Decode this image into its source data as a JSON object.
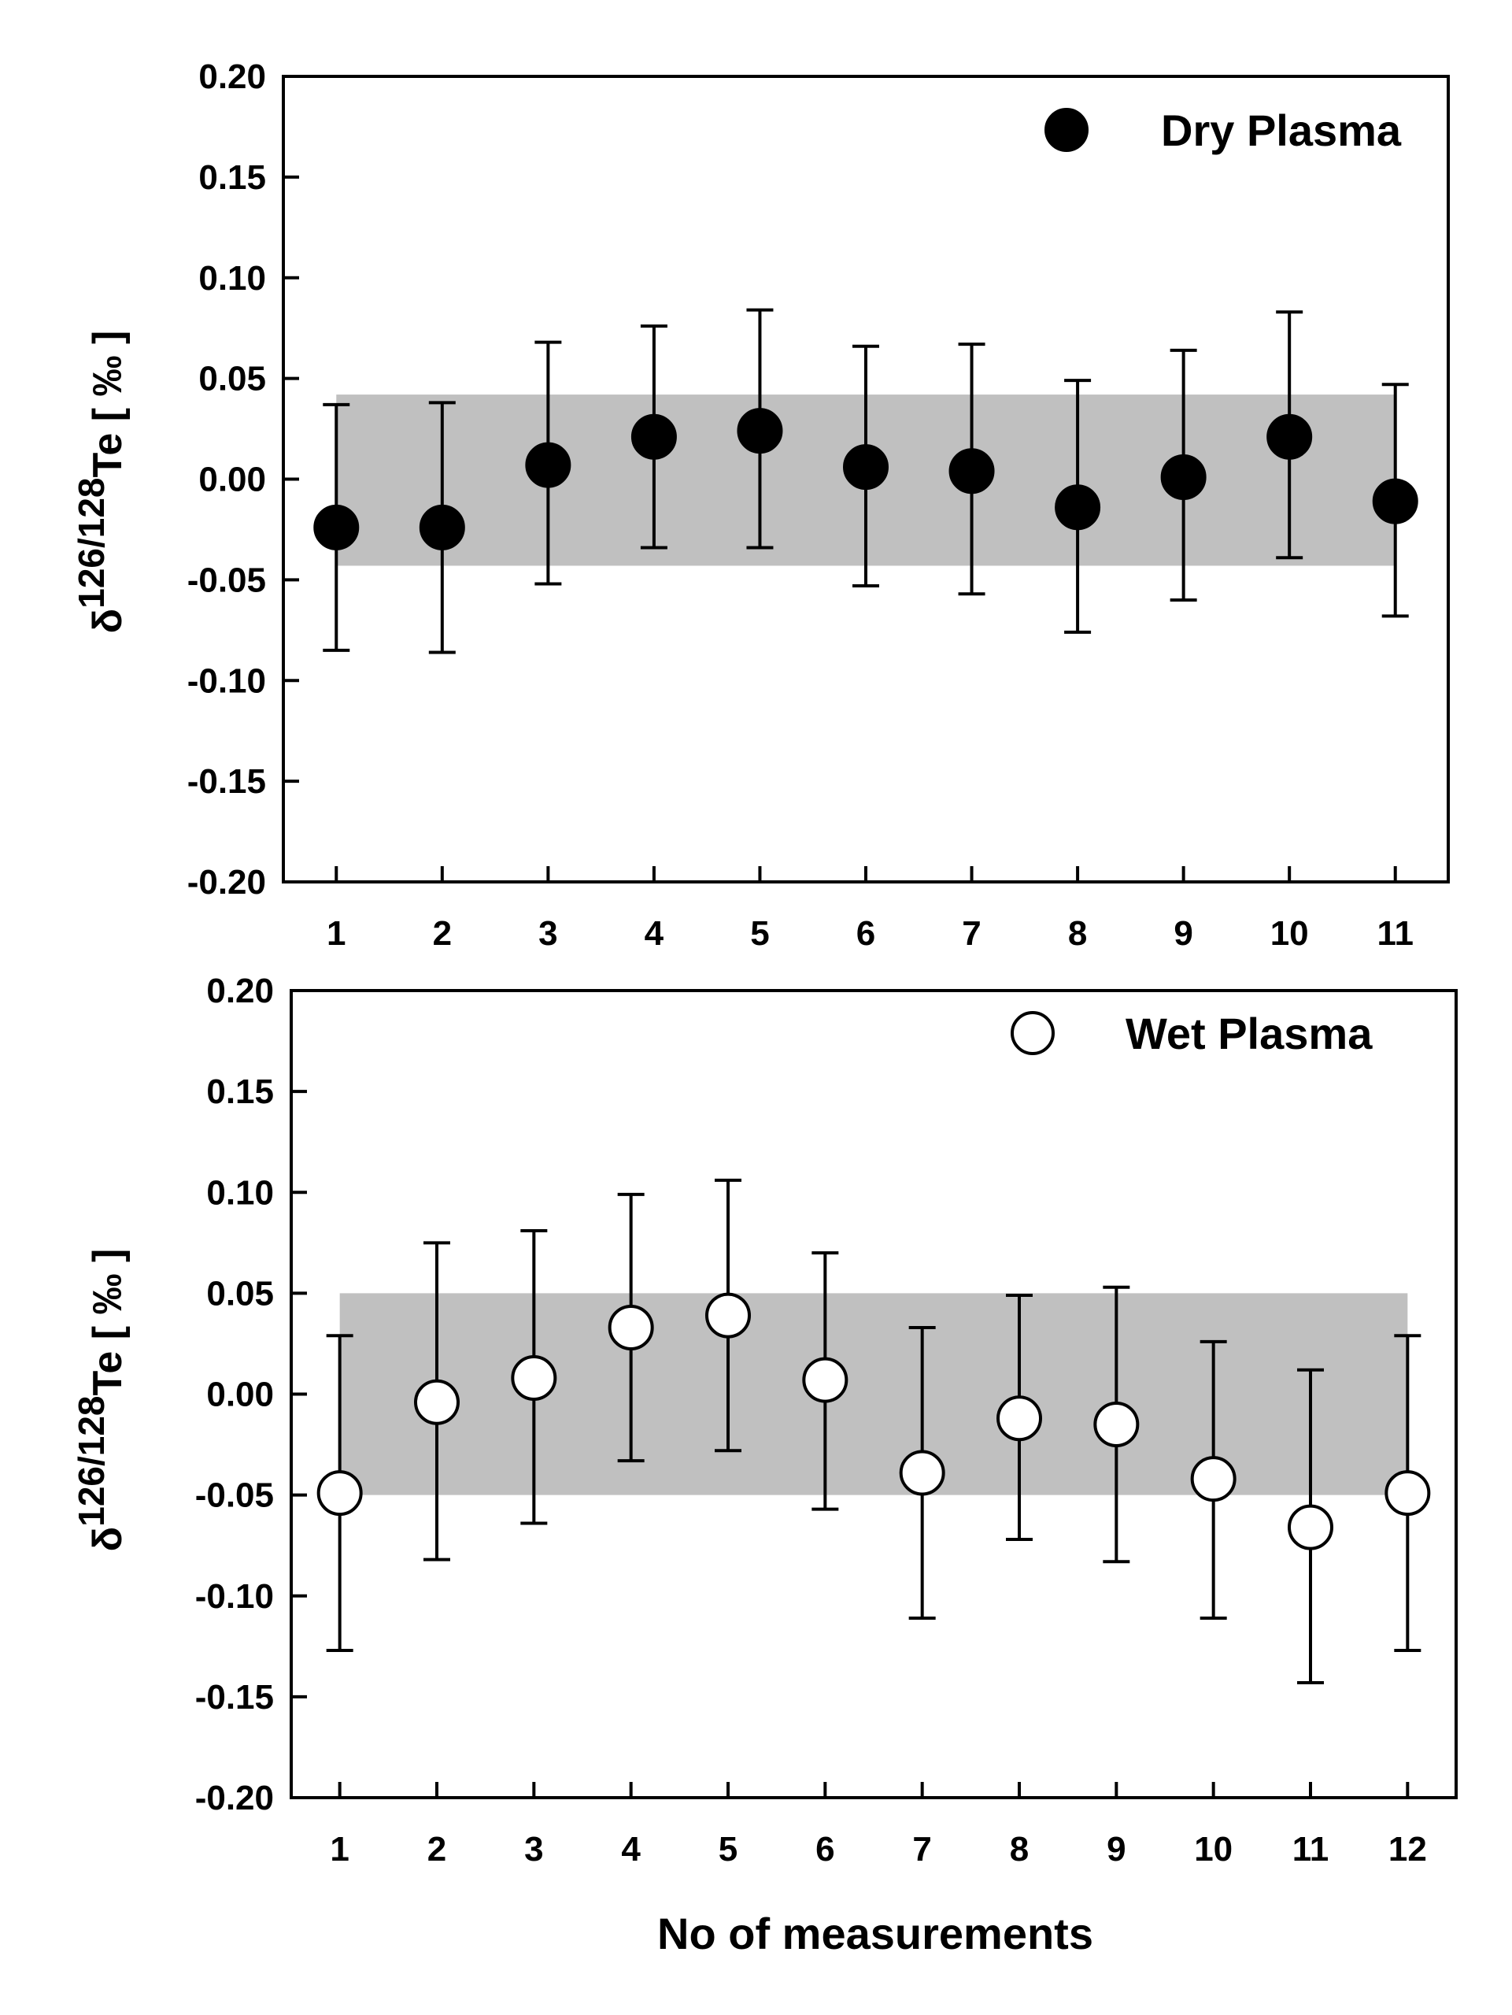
{
  "chart_data": [
    {
      "type": "scatter",
      "panel": "top",
      "series_name": "Dry Plasma",
      "marker": "filled-circle",
      "x": [
        1,
        2,
        3,
        4,
        5,
        6,
        7,
        8,
        9,
        10,
        11
      ],
      "y": [
        -0.024,
        -0.024,
        0.007,
        0.021,
        0.024,
        0.006,
        0.004,
        -0.014,
        0.001,
        0.021,
        -0.011
      ],
      "y_err_upper": [
        0.037,
        0.038,
        0.068,
        0.076,
        0.084,
        0.066,
        0.067,
        0.049,
        0.064,
        0.083,
        0.047
      ],
      "y_err_lower": [
        -0.085,
        -0.086,
        -0.052,
        -0.034,
        -0.034,
        -0.053,
        -0.057,
        -0.076,
        -0.06,
        -0.039,
        -0.068
      ],
      "band": [
        -0.043,
        0.042
      ],
      "band_color": "#c0c0c0",
      "xlim": [
        0.5,
        11.5
      ],
      "ylim": [
        -0.2,
        0.2
      ],
      "xticks": [
        "1",
        "2",
        "3",
        "4",
        "5",
        "6",
        "7",
        "8",
        "9",
        "10",
        "11"
      ],
      "yticks": [
        "0.20",
        "0.15",
        "0.10",
        "0.05",
        "0.00",
        "-0.05",
        "-0.10",
        "-0.15",
        "-0.20"
      ],
      "ylabel": {
        "delta": "δ",
        "sup": "126/128",
        "main": "Te [ ‰ ]"
      },
      "xlabel": "",
      "legend": "top-right"
    },
    {
      "type": "scatter",
      "panel": "bottom",
      "series_name": "Wet Plasma",
      "marker": "open-circle",
      "x": [
        1,
        2,
        3,
        4,
        5,
        6,
        7,
        8,
        9,
        10,
        11,
        12
      ],
      "y": [
        -0.049,
        -0.004,
        0.008,
        0.033,
        0.039,
        0.007,
        -0.039,
        -0.012,
        -0.015,
        -0.042,
        -0.066,
        -0.049
      ],
      "y_err_upper": [
        0.029,
        0.075,
        0.081,
        0.099,
        0.106,
        0.07,
        0.033,
        0.049,
        0.053,
        0.026,
        0.012,
        0.029
      ],
      "y_err_lower": [
        -0.127,
        -0.082,
        -0.064,
        -0.033,
        -0.028,
        -0.057,
        -0.111,
        -0.072,
        -0.083,
        -0.111,
        -0.143,
        -0.127
      ],
      "band": [
        -0.05,
        0.05
      ],
      "band_color": "#c0c0c0",
      "xlim": [
        0.5,
        12.5
      ],
      "ylim": [
        -0.2,
        0.2
      ],
      "xticks": [
        "1",
        "2",
        "3",
        "4",
        "5",
        "6",
        "7",
        "8",
        "9",
        "10",
        "11",
        "12"
      ],
      "yticks": [
        "0.20",
        "0.15",
        "0.10",
        "0.05",
        "0.00",
        "-0.05",
        "-0.10",
        "-0.15",
        "-0.20"
      ],
      "ylabel": {
        "delta": "δ",
        "sup": "126/128",
        "main": "Te [ ‰ ]"
      },
      "xlabel": "No of measurements",
      "legend": "top-right"
    }
  ]
}
